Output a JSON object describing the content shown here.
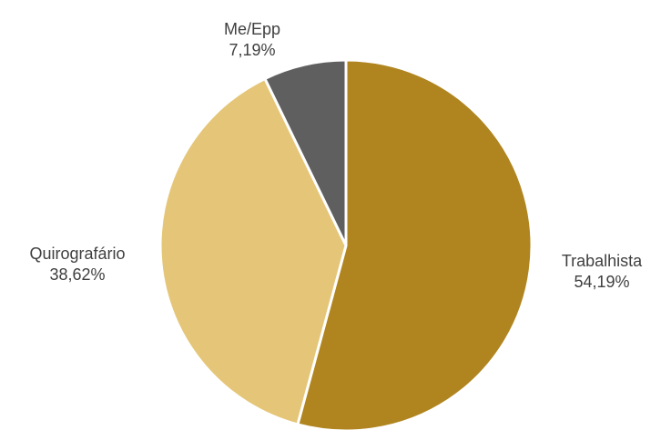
{
  "chart_data": {
    "type": "pie",
    "title": "",
    "start_angle_deg": 0,
    "direction": "clockwise",
    "slices": [
      {
        "label": "Trabalhista",
        "value": 54.19,
        "value_label": "54,19%",
        "color": "#b0851f"
      },
      {
        "label": "Quirografário",
        "value": 38.62,
        "value_label": "38,62%",
        "color": "#e5c678"
      },
      {
        "label": "Me/Epp",
        "value": 7.19,
        "value_label": "7,19%",
        "color": "#5f5f5f"
      }
    ],
    "legend": "none",
    "data_labels": "outside"
  }
}
